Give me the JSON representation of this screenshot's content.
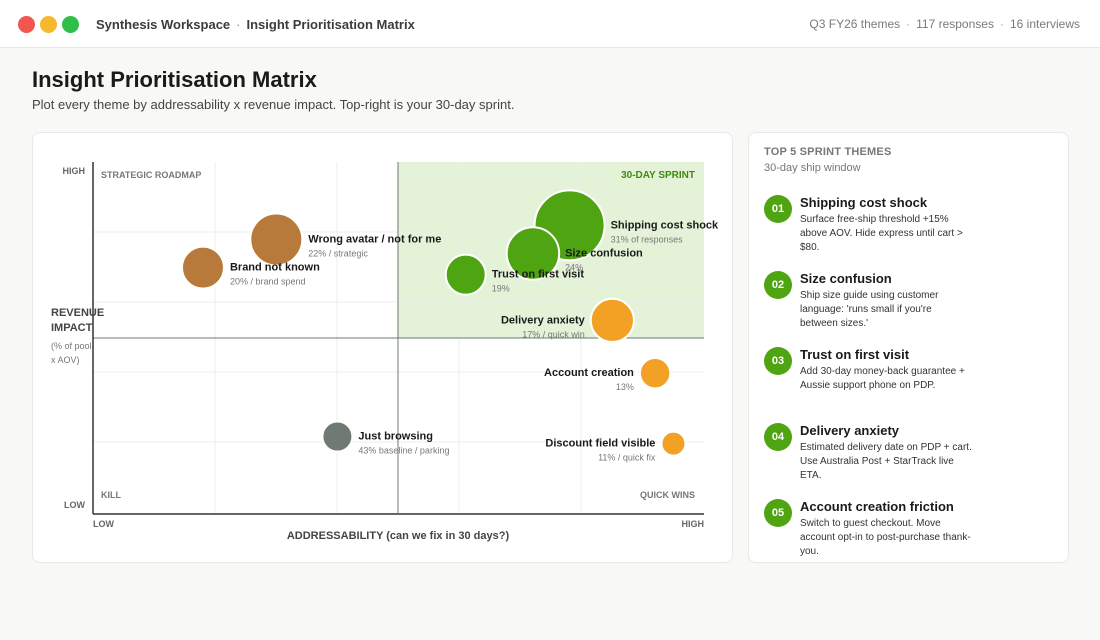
{
  "window": {
    "app_name": "Synthesis Workspace",
    "separator": "·",
    "page_name": "Insight Prioritisation Matrix",
    "meta": [
      "Q3 FY26 themes",
      "117 responses",
      "16 interviews"
    ],
    "meta_sep": "·"
  },
  "header": {
    "title": "Insight Prioritisation Matrix",
    "subtitle": "Plot every theme by addressability x revenue impact. Top-right is your 30-day sprint."
  },
  "colors": {
    "sprint": "#4fa412",
    "strategic": "#b87a3a",
    "quickwin": "#f2a125",
    "kill": "#6e7a72",
    "sprint_zone": "#e4f3d8"
  },
  "matrix": {
    "y_high": "HIGH",
    "y_low": "LOW",
    "x_low": "LOW",
    "x_high": "HIGH",
    "x_axis_title": "ADDRESSABILITY  (can we fix in 30 days?)",
    "y_axis_title_1": "REVENUE",
    "y_axis_title_2": "IMPACT",
    "y_axis_note_1": "(% of pool",
    "y_axis_note_2": "x AOV)",
    "quadrants": {
      "top_left": "STRATEGIC ROADMAP",
      "top_right": "30-DAY SPRINT",
      "bottom_left": "KILL",
      "bottom_right": "QUICK WINS"
    }
  },
  "chart_data": {
    "type": "scatter",
    "x_range": [
      0,
      1
    ],
    "y_range": [
      0,
      1
    ],
    "points": [
      {
        "name": "Shipping cost shock",
        "note": "31% of responses",
        "x": 0.78,
        "y": 0.82,
        "size": 31,
        "group": "sprint"
      },
      {
        "name": "Size confusion",
        "note": "24%",
        "x": 0.72,
        "y": 0.74,
        "size": 24,
        "group": "sprint"
      },
      {
        "name": "Trust on first visit",
        "note": "19%",
        "x": 0.61,
        "y": 0.68,
        "size": 19,
        "group": "sprint"
      },
      {
        "name": "Delivery anxiety",
        "note": "17% / quick win",
        "x": 0.85,
        "y": 0.55,
        "size": 17,
        "group": "quickwin"
      },
      {
        "name": "Account creation",
        "note": "13%",
        "x": 0.92,
        "y": 0.4,
        "size": 13,
        "group": "quickwin"
      },
      {
        "name": "Discount field visible",
        "note": "11% / quick fix",
        "x": 0.95,
        "y": 0.2,
        "size": 11,
        "group": "quickwin"
      },
      {
        "name": "Wrong avatar / not for me",
        "note": "22% / strategic",
        "x": 0.3,
        "y": 0.78,
        "size": 22,
        "group": "strategic"
      },
      {
        "name": "Brand not known",
        "note": "20% / brand spend",
        "x": 0.18,
        "y": 0.7,
        "size": 20,
        "group": "strategic"
      },
      {
        "name": "Just browsing",
        "note": "43% baseline / parking",
        "x": 0.4,
        "y": 0.22,
        "size": 43,
        "group": "kill"
      }
    ]
  },
  "sidebar": {
    "title": "TOP 5 SPRINT THEMES",
    "subtitle": "30-day ship window",
    "items": [
      {
        "num": "01",
        "title": "Shipping cost shock",
        "desc": "Surface free-ship threshold +15% above AOV. Hide express until cart > $80."
      },
      {
        "num": "02",
        "title": "Size confusion",
        "desc": "Ship size guide using customer language: 'runs small if you're between sizes.'"
      },
      {
        "num": "03",
        "title": "Trust on first visit",
        "desc": "Add 30-day money-back guarantee + Aussie support phone on PDP."
      },
      {
        "num": "04",
        "title": "Delivery anxiety",
        "desc": "Estimated delivery date on PDP + cart. Use Australia Post + StarTrack live ETA."
      },
      {
        "num": "05",
        "title": "Account creation friction",
        "desc": "Switch to guest checkout. Move account opt-in to post-purchase thank-you."
      }
    ]
  }
}
